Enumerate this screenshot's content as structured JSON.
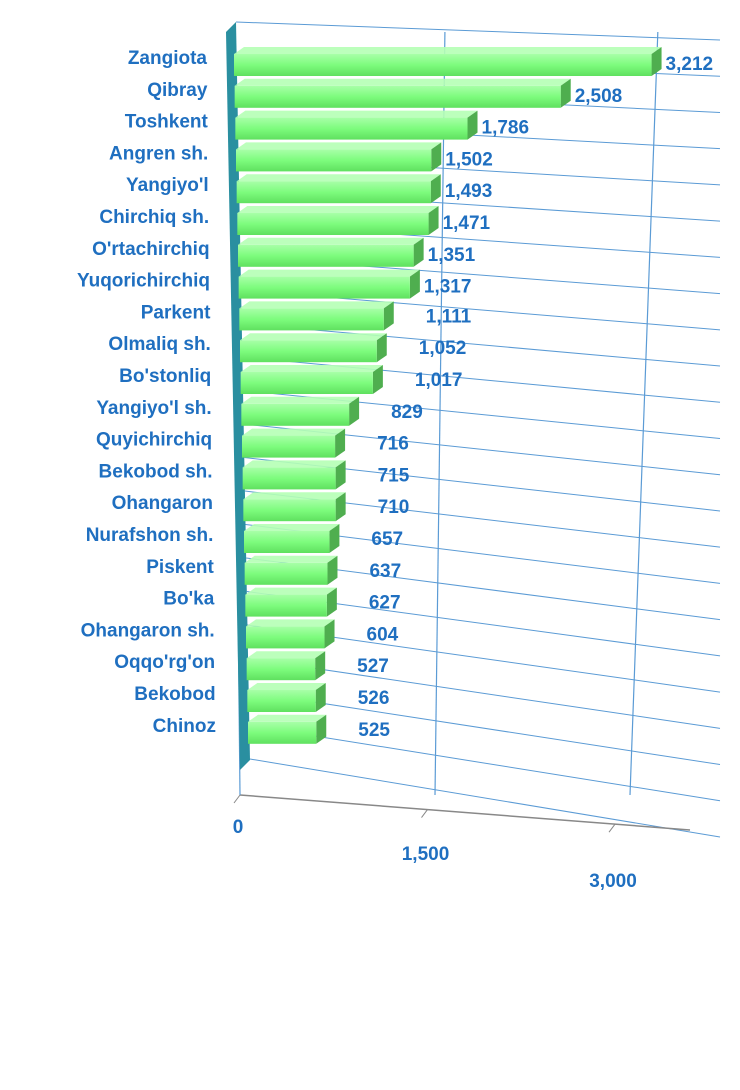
{
  "chart_data": {
    "type": "bar",
    "orientation": "horizontal",
    "categories": [
      "Zangiota",
      "Qibray",
      "Toshkent",
      "Angren sh.",
      "Yangiyo'l",
      "Chirchiq sh.",
      "O'rtachirchiq",
      "Yuqorichirchiq",
      "Parkent",
      "Olmaliq sh.",
      "Bo'stonliq",
      "Yangiyo'l sh.",
      "Quyichirchiq",
      "Bekobod sh.",
      "Ohangaron",
      "Nurafshon sh.",
      "Piskent",
      "Bo'ka",
      "Ohangaron sh.",
      "Oqqo'rg'on",
      "Bekobod",
      "Chinoz"
    ],
    "values": [
      3212,
      2508,
      1786,
      1502,
      1493,
      1471,
      1351,
      1317,
      1111,
      1052,
      1017,
      829,
      716,
      715,
      710,
      657,
      637,
      627,
      604,
      527,
      526,
      525
    ],
    "value_labels": [
      "3,212",
      "2,508",
      "1,786",
      "1,502",
      "1,493",
      "1,471",
      "1,351",
      "1,317",
      "1,111",
      "1,052",
      "1,017",
      "829",
      "716",
      "715",
      "710",
      "657",
      "637",
      "627",
      "604",
      "527",
      "526",
      "525"
    ],
    "color": "#7dfc7d",
    "xlim": [
      0,
      3600
    ],
    "xticks": [
      0,
      {
        "value": 1500,
        "label": "1,500"
      },
      {
        "value": 3000,
        "label": "3,000"
      }
    ],
    "grid": true
  }
}
